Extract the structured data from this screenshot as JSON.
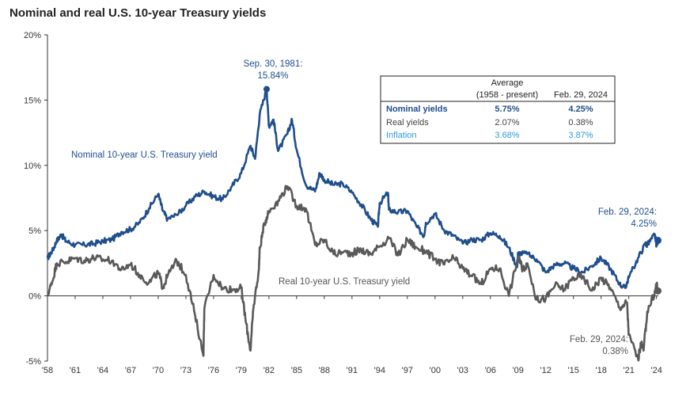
{
  "title": "Nominal and real U.S. 10-year Treasury yields",
  "colors": {
    "nominal": "#1f4e8c",
    "real": "#595959",
    "inflation": "#2e9bd6",
    "axis": "#333333"
  },
  "chart_data": {
    "type": "line",
    "title": "Nominal and real U.S. 10-year Treasury yields",
    "xlabel": "",
    "ylabel": "",
    "xlim": [
      1958,
      2024.2
    ],
    "ylim": [
      -5,
      20
    ],
    "y_ticks": [
      "-5%",
      "0%",
      "5%",
      "10%",
      "15%",
      "20%"
    ],
    "y_tick_values": [
      -5,
      0,
      5,
      10,
      15,
      20
    ],
    "x_ticks": [
      "'58",
      "'61",
      "'64",
      "'67",
      "'70",
      "'73",
      "'76",
      "'79",
      "'82",
      "'85",
      "'88",
      "'91",
      "'94",
      "'97",
      "'00",
      "'03",
      "'06",
      "'09",
      "'12",
      "'15",
      "'18",
      "'21",
      "'24"
    ],
    "x_tick_years": [
      1958,
      1961,
      1964,
      1967,
      1970,
      1973,
      1976,
      1979,
      1982,
      1985,
      1988,
      1991,
      1994,
      1997,
      2000,
      2003,
      2006,
      2009,
      2012,
      2015,
      2018,
      2021,
      2024
    ],
    "grid": false,
    "series": [
      {
        "name": "Nominal 10-year U.S. Treasury yield",
        "x": [
          1958,
          1958.5,
          1959,
          1959.5,
          1960,
          1961,
          1962,
          1963,
          1964,
          1965,
          1966,
          1967,
          1968,
          1969,
          1970,
          1970.5,
          1971,
          1972,
          1973,
          1974,
          1975,
          1976,
          1977,
          1978,
          1979,
          1980,
          1980.5,
          1981,
          1981.75,
          1982,
          1982.5,
          1983,
          1984,
          1984.5,
          1985,
          1986,
          1987,
          1987.5,
          1988,
          1989,
          1990,
          1991,
          1992,
          1993,
          1993.8,
          1994,
          1994.9,
          1995,
          1996,
          1997,
          1998,
          1998.8,
          1999,
          2000,
          2001,
          2002,
          2003,
          2004,
          2005,
          2006,
          2007,
          2008,
          2008.9,
          2009,
          2010,
          2011,
          2012,
          2013,
          2014,
          2015,
          2016,
          2017,
          2018,
          2019,
          2020,
          2020.6,
          2021,
          2022,
          2022.8,
          2023,
          2023.8,
          2024,
          2024.16
        ],
        "y": [
          2.9,
          3.4,
          4.2,
          4.7,
          4.2,
          3.9,
          3.9,
          4.0,
          4.2,
          4.3,
          4.9,
          5.1,
          5.6,
          6.7,
          7.8,
          6.5,
          5.9,
          6.2,
          6.9,
          7.6,
          8.0,
          7.6,
          7.4,
          8.4,
          9.4,
          11.5,
          10.5,
          13.9,
          15.84,
          13.0,
          13.5,
          11.1,
          12.4,
          13.5,
          11.2,
          8.5,
          8.0,
          9.4,
          8.9,
          8.5,
          8.6,
          7.9,
          7.0,
          5.9,
          5.3,
          7.1,
          7.9,
          6.6,
          6.4,
          6.5,
          5.3,
          4.6,
          5.6,
          6.3,
          5.0,
          4.6,
          4.0,
          4.3,
          4.3,
          4.8,
          4.6,
          3.7,
          2.2,
          3.3,
          3.2,
          2.8,
          1.8,
          2.4,
          2.5,
          2.1,
          1.8,
          2.3,
          2.9,
          2.1,
          0.9,
          0.6,
          1.4,
          2.9,
          4.0,
          3.9,
          4.7,
          3.9,
          4.25
        ]
      },
      {
        "name": "Real 10-year U.S. Treasury yield",
        "x": [
          1958,
          1958.5,
          1959,
          1960,
          1961,
          1962,
          1963,
          1964,
          1965,
          1966,
          1967,
          1968,
          1969,
          1970,
          1970.5,
          1971,
          1972,
          1973,
          1974,
          1974.9,
          1975,
          1976,
          1977,
          1978,
          1979,
          1979.5,
          1980,
          1980.3,
          1980.9,
          1981,
          1981.5,
          1982,
          1983,
          1984,
          1985,
          1986,
          1987,
          1988,
          1989,
          1990,
          1991,
          1992,
          1993,
          1994,
          1995,
          1996,
          1997,
          1998,
          1999,
          2000,
          2001,
          2002,
          2003,
          2004,
          2005,
          2006,
          2007,
          2008,
          2009,
          2009.5,
          2010,
          2011,
          2012,
          2013,
          2014,
          2015,
          2016,
          2017,
          2018,
          2019,
          2020,
          2020.8,
          2021,
          2022,
          2022.4,
          2022.6,
          2023,
          2023.8,
          2024,
          2024.16
        ],
        "y": [
          0.1,
          1.0,
          2.5,
          2.6,
          2.9,
          2.7,
          2.9,
          2.8,
          2.7,
          2.0,
          2.4,
          1.6,
          1.0,
          1.8,
          0.6,
          1.5,
          2.7,
          1.6,
          -1.5,
          -4.6,
          -1.0,
          1.6,
          0.6,
          0.5,
          0.6,
          -2.0,
          -4.2,
          -1.0,
          2.0,
          3.6,
          5.5,
          6.5,
          7.3,
          8.4,
          6.9,
          6.7,
          3.9,
          4.3,
          3.2,
          3.3,
          3.3,
          3.5,
          3.2,
          3.8,
          4.4,
          3.1,
          4.3,
          3.7,
          3.4,
          2.8,
          2.4,
          2.9,
          2.1,
          1.5,
          0.9,
          2.1,
          2.1,
          0.0,
          3.0,
          2.0,
          2.5,
          -0.3,
          -0.2,
          0.8,
          0.5,
          1.4,
          1.5,
          0.4,
          1.4,
          0.6,
          -0.9,
          -0.5,
          -3.0,
          -4.8,
          -3.5,
          -4.2,
          -1.2,
          0.2,
          0.9,
          0.38
        ]
      }
    ],
    "annotations": {
      "peak_date": "Sep. 30, 1981:",
      "peak_value": "15.84%",
      "nominal_end_date": "Feb. 29, 2024:",
      "nominal_end_value": "4.25%",
      "real_end_date": "Feb. 29, 2024:",
      "real_end_value": "0.38%",
      "nominal_label": "Nominal 10-year U.S. Treasury yield",
      "real_label": "Real 10-year U.S. Treasury yield"
    },
    "table": {
      "header_avg_1": "Average",
      "header_avg_2": "(1958 - present)",
      "header_latest": "Feb. 29, 2024",
      "rows": [
        {
          "label": "Nominal yields",
          "average": "5.75%",
          "latest": "4.25%"
        },
        {
          "label": "Real yields",
          "average": "2.07%",
          "latest": "0.38%"
        },
        {
          "label": "Inflation",
          "average": "3.68%",
          "latest": "3.87%"
        }
      ]
    }
  }
}
